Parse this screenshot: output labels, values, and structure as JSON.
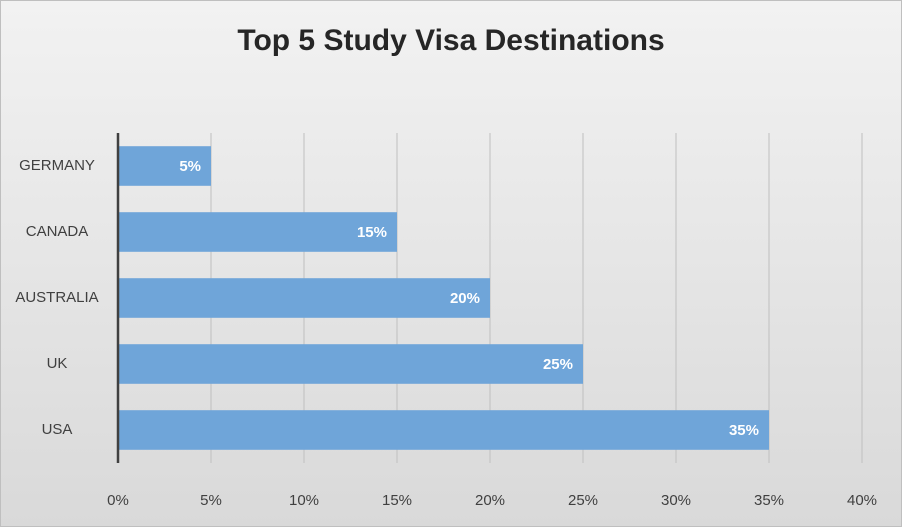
{
  "chart_data": {
    "type": "bar",
    "orientation": "horizontal",
    "title": "Top 5 Study Visa Destinations",
    "categories": [
      "GERMANY",
      "CANADA",
      "AUSTRALIA",
      "UK",
      "USA"
    ],
    "values": [
      5,
      15,
      20,
      25,
      35
    ],
    "value_labels": [
      "5%",
      "15%",
      "20%",
      "25%",
      "35%"
    ],
    "color": "#6fa5d9",
    "xlim": [
      0,
      40
    ],
    "xticks": [
      {
        "value": 0,
        "label": "0%"
      },
      {
        "value": 5,
        "label": "5%"
      },
      {
        "value": 10,
        "label": "10%"
      },
      {
        "value": 15,
        "label": "15%"
      },
      {
        "value": 20,
        "label": "20%"
      },
      {
        "value": 25,
        "label": "25%"
      },
      {
        "value": 30,
        "label": "30%"
      },
      {
        "value": 35,
        "label": "35%"
      },
      {
        "value": 40,
        "label": "40%"
      }
    ],
    "grid": true
  }
}
